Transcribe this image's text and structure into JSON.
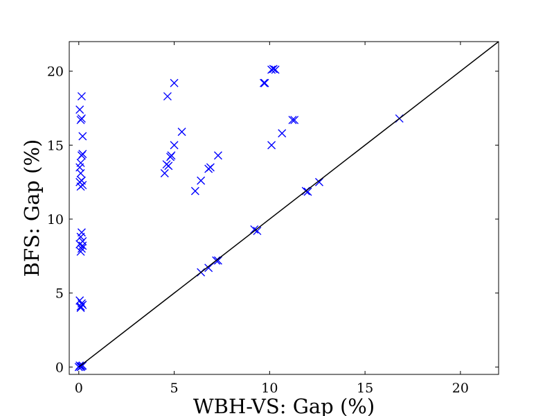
{
  "chart_data": {
    "type": "scatter",
    "xlabel": "WBH-VS: Gap (%)",
    "ylabel": "BFS: Gap (%)",
    "xlim": [
      -0.5,
      22
    ],
    "ylim": [
      -0.5,
      22
    ],
    "x_ticks": [
      0,
      5,
      10,
      15,
      20
    ],
    "y_ticks": [
      0,
      5,
      10,
      15,
      20
    ],
    "grid": false,
    "marker": "x",
    "marker_color": "#0000ff",
    "reference_line": {
      "from": [
        0,
        0
      ],
      "to": [
        22,
        22
      ],
      "color": "#000000"
    },
    "points": [
      [
        0.0,
        0.0
      ],
      [
        0.05,
        0.1
      ],
      [
        0.1,
        0.0
      ],
      [
        0.15,
        0.05
      ],
      [
        0.2,
        0.1
      ],
      [
        0.1,
        4.1
      ],
      [
        0.15,
        4.3
      ],
      [
        0.05,
        4.5
      ],
      [
        0.2,
        4.2
      ],
      [
        0.1,
        4.0
      ],
      [
        0.1,
        7.8
      ],
      [
        0.15,
        8.0
      ],
      [
        0.05,
        8.3
      ],
      [
        0.2,
        8.5
      ],
      [
        0.1,
        8.8
      ],
      [
        0.15,
        9.1
      ],
      [
        0.2,
        8.2
      ],
      [
        0.1,
        12.2
      ],
      [
        0.05,
        12.5
      ],
      [
        0.15,
        12.6
      ],
      [
        0.2,
        12.3
      ],
      [
        0.1,
        13.1
      ],
      [
        0.05,
        13.5
      ],
      [
        0.1,
        13.8
      ],
      [
        0.15,
        14.3
      ],
      [
        0.2,
        14.4
      ],
      [
        0.2,
        15.6
      ],
      [
        0.1,
        16.7
      ],
      [
        0.15,
        16.8
      ],
      [
        0.05,
        17.4
      ],
      [
        0.15,
        18.3
      ],
      [
        4.5,
        13.1
      ],
      [
        4.6,
        13.7
      ],
      [
        4.7,
        13.6
      ],
      [
        4.8,
        14.2
      ],
      [
        4.85,
        14.3
      ],
      [
        5.0,
        15.0
      ],
      [
        5.4,
        15.9
      ],
      [
        4.65,
        18.3
      ],
      [
        5.0,
        19.2
      ],
      [
        6.1,
        11.9
      ],
      [
        6.4,
        12.6
      ],
      [
        6.8,
        13.4
      ],
      [
        6.9,
        13.5
      ],
      [
        7.3,
        14.3
      ],
      [
        6.4,
        6.4
      ],
      [
        6.8,
        6.7
      ],
      [
        7.2,
        7.2
      ],
      [
        7.3,
        7.2
      ],
      [
        9.2,
        9.3
      ],
      [
        9.35,
        9.2
      ],
      [
        9.7,
        19.2
      ],
      [
        9.75,
        19.2
      ],
      [
        10.1,
        15.0
      ],
      [
        10.65,
        15.8
      ],
      [
        10.1,
        20.1
      ],
      [
        10.2,
        20.15
      ],
      [
        10.3,
        20.1
      ],
      [
        11.2,
        16.7
      ],
      [
        11.3,
        16.7
      ],
      [
        11.9,
        11.9
      ],
      [
        12.0,
        11.85
      ],
      [
        12.6,
        12.5
      ],
      [
        16.8,
        16.8
      ]
    ]
  }
}
